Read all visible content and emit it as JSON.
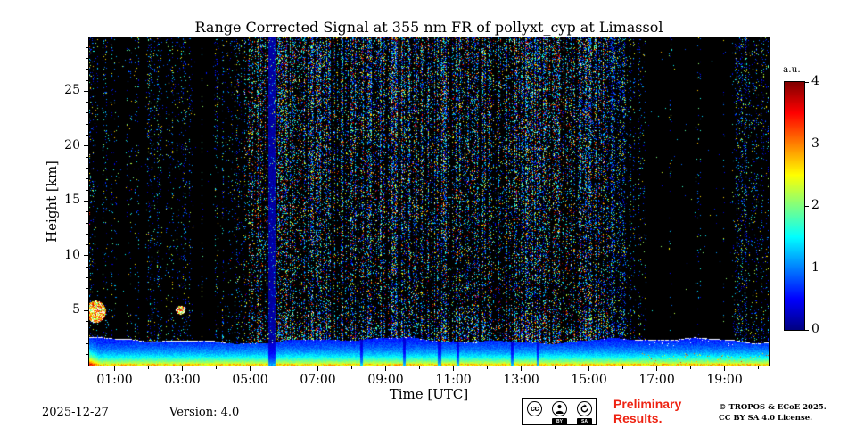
{
  "chart_data": {
    "type": "heatmap",
    "title": "Range Corrected Signal at 355 nm FR of pollyxt_cyp at Limassol",
    "xlabel": "Time [UTC]",
    "ylabel": "Height [km]",
    "x_ticks": [
      "01:00",
      "03:00",
      "05:00",
      "07:00",
      "09:00",
      "11:00",
      "13:00",
      "15:00",
      "17:00",
      "19:00"
    ],
    "x_tick_hours": [
      1,
      3,
      5,
      7,
      9,
      11,
      13,
      15,
      17,
      19
    ],
    "x_minor_tick_hours": [
      2,
      4,
      6,
      8,
      10,
      12,
      14,
      16,
      18,
      20
    ],
    "y_ticks": [
      "5",
      "10",
      "15",
      "20",
      "25"
    ],
    "y_tick_km": [
      5,
      10,
      15,
      20,
      25
    ],
    "x_range_hours": [
      0.25,
      20.3
    ],
    "y_range_km": [
      0,
      29.9
    ],
    "grid": false,
    "legend": "none",
    "colorbar": {
      "label": "a.u.",
      "ticks": [
        "0",
        "1",
        "2",
        "3",
        "4"
      ],
      "tick_values": [
        0,
        1,
        2,
        3,
        4
      ],
      "min": 0,
      "max": 4,
      "colormap": "jet",
      "stops": [
        "#000080",
        "#0000ff",
        "#00ffff",
        "#ffff00",
        "#ff0000",
        "#800000"
      ]
    },
    "features": {
      "description": "Lidar range-corrected signal quicklook: strong aerosol signal below ~2.5 km all day with white layer-top line; dense multicolour solar-background noise speckle aloft ~05:00-15:30 UTC; sparse speckle with black data-gap columns 00:00-05:00 and 16:40-19:20; dark-blue depolarisation-calibration stripe near 05:40; small bright cloud echoes near 00:20 and 03:00 at ~5 km.",
      "boundary_layer_top_km": 2.28,
      "daytime_noise_hours": [
        5.0,
        15.4
      ],
      "calibration_stripe_hours": [
        5.55,
        5.76
      ],
      "dark_gap_hours": [
        [
          0.52,
          0.64
        ],
        [
          1.12,
          1.34
        ],
        [
          1.5,
          1.58
        ],
        [
          1.72,
          1.92
        ],
        [
          2.4,
          2.5
        ],
        [
          3.3,
          3.56
        ],
        [
          3.62,
          3.88
        ],
        [
          4.08,
          4.18
        ],
        [
          16.7,
          17.35
        ],
        [
          17.45,
          18.15
        ],
        [
          18.3,
          18.95
        ],
        [
          19.0,
          19.22
        ]
      ],
      "attenuated_streak_hours": [
        [
          8.25,
          8.33
        ],
        [
          9.5,
          9.58
        ],
        [
          10.55,
          10.65
        ],
        [
          11.1,
          11.18
        ],
        [
          12.7,
          12.77
        ],
        [
          13.45,
          13.52
        ]
      ],
      "clouds": [
        {
          "t": 0.45,
          "h": 4.9,
          "rt": 0.3,
          "rh": 1.0
        },
        {
          "t": 2.95,
          "h": 5.05,
          "rt": 0.14,
          "rh": 0.4
        }
      ]
    }
  },
  "footer": {
    "date": "2025-12-27",
    "version_label": "Version: 4.0",
    "preliminary_note": "Preliminary\nResults.",
    "preliminary_color": "#ee2211",
    "copyright_line1": "© TROPOS & ECoE 2025.",
    "copyright_line2": "CC BY SA 4.0 License.",
    "license_badge": {
      "cc_label": "cc",
      "by_label": "BY",
      "sa_label": "SA"
    }
  }
}
